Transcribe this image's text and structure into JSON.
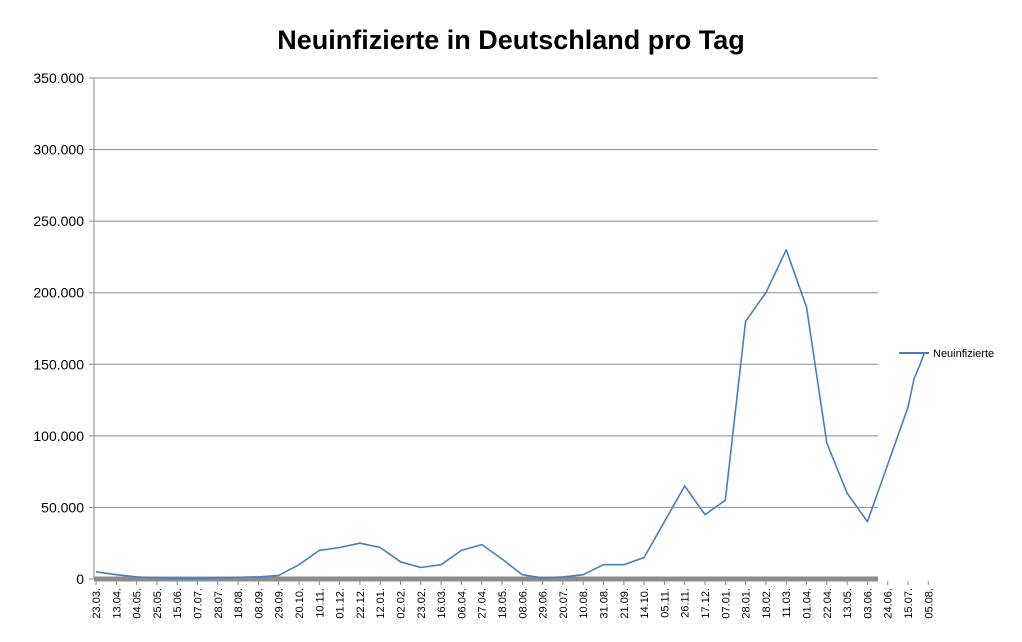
{
  "chart_data": {
    "type": "line",
    "title": "Neuinfizierte in Deutschland pro Tag",
    "xlabel": "",
    "ylabel": "",
    "ylim": [
      0,
      350000
    ],
    "yticks": [
      0,
      50000,
      100000,
      150000,
      200000,
      250000,
      300000,
      350000
    ],
    "ytick_labels": [
      "0",
      "50.000",
      "100.000",
      "150.000",
      "200.000",
      "250.000",
      "300.000",
      "350.000"
    ],
    "xtick_labels": [
      "23.03.",
      "13.04.",
      "04.05.",
      "25.05.",
      "15.06.",
      "07.07.",
      "28.07.",
      "18.08.",
      "08.09.",
      "29.09.",
      "20.10.",
      "10.11.",
      "01.12.",
      "22.12.",
      "12.01.",
      "02.02.",
      "23.02.",
      "16.03.",
      "06.04.",
      "27.04.",
      "18.05.",
      "08.06.",
      "29.06.",
      "20.07.",
      "10.08.",
      "31.08.",
      "21.09.",
      "14.10.",
      "05.11.",
      "26.11.",
      "17.12.",
      "07.01.",
      "28.01.",
      "18.02.",
      "11.03.",
      "01.04.",
      "22.04.",
      "13.05.",
      "03.06.",
      "24.06.",
      "15.07.",
      "05.08."
    ],
    "grid": true,
    "legend": "right",
    "line_color": "#4a7ebb",
    "series": [
      {
        "name": "Neuinfizierte",
        "x_index": [
          0,
          1,
          2,
          3,
          4,
          5,
          6,
          7,
          8,
          9,
          10,
          11,
          12,
          13,
          14,
          15,
          16,
          17,
          18,
          19,
          20,
          21,
          22,
          23,
          24,
          25,
          26,
          27,
          28,
          29,
          30,
          31,
          32,
          33,
          34,
          35,
          36,
          37,
          38,
          39,
          40,
          40.3,
          40.6,
          40.8
        ],
        "values": [
          5000,
          3000,
          1500,
          800,
          500,
          500,
          700,
          1200,
          1500,
          2500,
          10000,
          20000,
          22000,
          25000,
          22000,
          12000,
          8000,
          10000,
          20000,
          24000,
          14000,
          3000,
          800,
          1500,
          3000,
          10000,
          10000,
          15000,
          40000,
          65000,
          45000,
          55000,
          180000,
          200000,
          230000,
          190000,
          95000,
          60000,
          40000,
          80000,
          120000,
          140000,
          150000,
          158000
        ]
      }
    ]
  }
}
